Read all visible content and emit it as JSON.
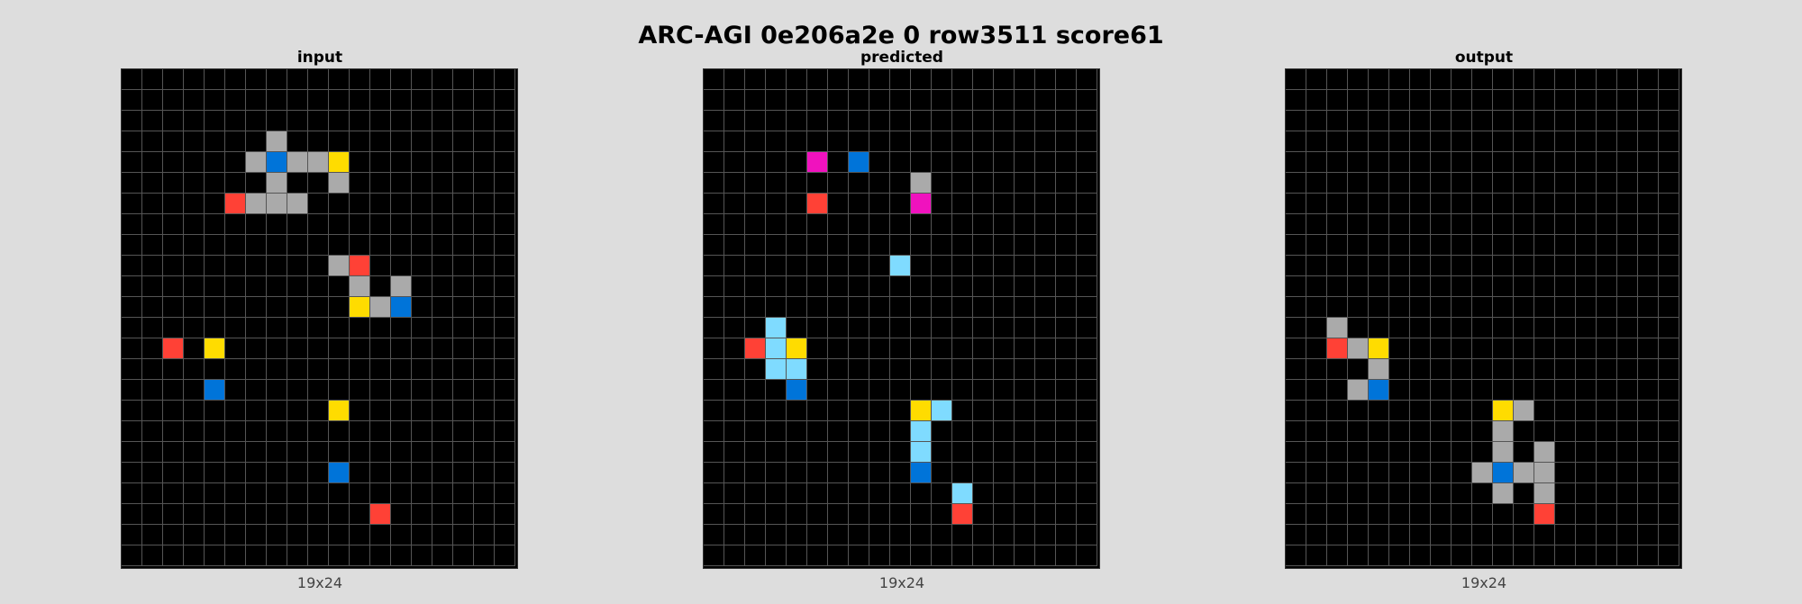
{
  "title": "ARC-AGI 0e206a2e 0 row3511 score61",
  "palette": {
    "0": "#000000",
    "1": "#0074d9",
    "2": "#ff4136",
    "3": "#2ecc40",
    "4": "#ffdc00",
    "5": "#aaaaaa",
    "6": "#f012be",
    "7": "#ff851b",
    "8": "#7fdbff",
    "9": "#870c25"
  },
  "panels": [
    {
      "label": "input",
      "dims": "19x24",
      "grid": [
        [
          0,
          0,
          0,
          0,
          0,
          0,
          0,
          0,
          0,
          0,
          0,
          0,
          0,
          0,
          0,
          0,
          0,
          0,
          0
        ],
        [
          0,
          0,
          0,
          0,
          0,
          0,
          0,
          0,
          0,
          0,
          0,
          0,
          0,
          0,
          0,
          0,
          0,
          0,
          0
        ],
        [
          0,
          0,
          0,
          0,
          0,
          0,
          0,
          0,
          0,
          0,
          0,
          0,
          0,
          0,
          0,
          0,
          0,
          0,
          0
        ],
        [
          0,
          0,
          0,
          0,
          0,
          0,
          0,
          5,
          0,
          0,
          0,
          0,
          0,
          0,
          0,
          0,
          0,
          0,
          0
        ],
        [
          0,
          0,
          0,
          0,
          0,
          0,
          5,
          1,
          5,
          5,
          4,
          0,
          0,
          0,
          0,
          0,
          0,
          0,
          0
        ],
        [
          0,
          0,
          0,
          0,
          0,
          0,
          0,
          5,
          0,
          0,
          5,
          0,
          0,
          0,
          0,
          0,
          0,
          0,
          0
        ],
        [
          0,
          0,
          0,
          0,
          0,
          2,
          5,
          5,
          5,
          0,
          0,
          0,
          0,
          0,
          0,
          0,
          0,
          0,
          0
        ],
        [
          0,
          0,
          0,
          0,
          0,
          0,
          0,
          0,
          0,
          0,
          0,
          0,
          0,
          0,
          0,
          0,
          0,
          0,
          0
        ],
        [
          0,
          0,
          0,
          0,
          0,
          0,
          0,
          0,
          0,
          0,
          0,
          0,
          0,
          0,
          0,
          0,
          0,
          0,
          0
        ],
        [
          0,
          0,
          0,
          0,
          0,
          0,
          0,
          0,
          0,
          0,
          5,
          2,
          0,
          0,
          0,
          0,
          0,
          0,
          0
        ],
        [
          0,
          0,
          0,
          0,
          0,
          0,
          0,
          0,
          0,
          0,
          0,
          5,
          0,
          5,
          0,
          0,
          0,
          0,
          0
        ],
        [
          0,
          0,
          0,
          0,
          0,
          0,
          0,
          0,
          0,
          0,
          0,
          4,
          5,
          1,
          0,
          0,
          0,
          0,
          0
        ],
        [
          0,
          0,
          0,
          0,
          0,
          0,
          0,
          0,
          0,
          0,
          0,
          0,
          0,
          0,
          0,
          0,
          0,
          0,
          0
        ],
        [
          0,
          0,
          2,
          0,
          4,
          0,
          0,
          0,
          0,
          0,
          0,
          0,
          0,
          0,
          0,
          0,
          0,
          0,
          0
        ],
        [
          0,
          0,
          0,
          0,
          0,
          0,
          0,
          0,
          0,
          0,
          0,
          0,
          0,
          0,
          0,
          0,
          0,
          0,
          0
        ],
        [
          0,
          0,
          0,
          0,
          1,
          0,
          0,
          0,
          0,
          0,
          0,
          0,
          0,
          0,
          0,
          0,
          0,
          0,
          0
        ],
        [
          0,
          0,
          0,
          0,
          0,
          0,
          0,
          0,
          0,
          0,
          4,
          0,
          0,
          0,
          0,
          0,
          0,
          0,
          0
        ],
        [
          0,
          0,
          0,
          0,
          0,
          0,
          0,
          0,
          0,
          0,
          0,
          0,
          0,
          0,
          0,
          0,
          0,
          0,
          0
        ],
        [
          0,
          0,
          0,
          0,
          0,
          0,
          0,
          0,
          0,
          0,
          0,
          0,
          0,
          0,
          0,
          0,
          0,
          0,
          0
        ],
        [
          0,
          0,
          0,
          0,
          0,
          0,
          0,
          0,
          0,
          0,
          1,
          0,
          0,
          0,
          0,
          0,
          0,
          0,
          0
        ],
        [
          0,
          0,
          0,
          0,
          0,
          0,
          0,
          0,
          0,
          0,
          0,
          0,
          0,
          0,
          0,
          0,
          0,
          0,
          0
        ],
        [
          0,
          0,
          0,
          0,
          0,
          0,
          0,
          0,
          0,
          0,
          0,
          0,
          2,
          0,
          0,
          0,
          0,
          0,
          0
        ],
        [
          0,
          0,
          0,
          0,
          0,
          0,
          0,
          0,
          0,
          0,
          0,
          0,
          0,
          0,
          0,
          0,
          0,
          0,
          0
        ],
        [
          0,
          0,
          0,
          0,
          0,
          0,
          0,
          0,
          0,
          0,
          0,
          0,
          0,
          0,
          0,
          0,
          0,
          0,
          0
        ]
      ]
    },
    {
      "label": "predicted",
      "dims": "19x24",
      "grid": [
        [
          0,
          0,
          0,
          0,
          0,
          0,
          0,
          0,
          0,
          0,
          0,
          0,
          0,
          0,
          0,
          0,
          0,
          0,
          0
        ],
        [
          0,
          0,
          0,
          0,
          0,
          0,
          0,
          0,
          0,
          0,
          0,
          0,
          0,
          0,
          0,
          0,
          0,
          0,
          0
        ],
        [
          0,
          0,
          0,
          0,
          0,
          0,
          0,
          0,
          0,
          0,
          0,
          0,
          0,
          0,
          0,
          0,
          0,
          0,
          0
        ],
        [
          0,
          0,
          0,
          0,
          0,
          0,
          0,
          0,
          0,
          0,
          0,
          0,
          0,
          0,
          0,
          0,
          0,
          0,
          0
        ],
        [
          0,
          0,
          0,
          0,
          0,
          6,
          0,
          1,
          0,
          0,
          0,
          0,
          0,
          0,
          0,
          0,
          0,
          0,
          0
        ],
        [
          0,
          0,
          0,
          0,
          0,
          0,
          0,
          0,
          0,
          0,
          5,
          0,
          0,
          0,
          0,
          0,
          0,
          0,
          0
        ],
        [
          0,
          0,
          0,
          0,
          0,
          2,
          0,
          0,
          0,
          0,
          6,
          0,
          0,
          0,
          0,
          0,
          0,
          0,
          0
        ],
        [
          0,
          0,
          0,
          0,
          0,
          0,
          0,
          0,
          0,
          0,
          0,
          0,
          0,
          0,
          0,
          0,
          0,
          0,
          0
        ],
        [
          0,
          0,
          0,
          0,
          0,
          0,
          0,
          0,
          0,
          0,
          0,
          0,
          0,
          0,
          0,
          0,
          0,
          0,
          0
        ],
        [
          0,
          0,
          0,
          0,
          0,
          0,
          0,
          0,
          0,
          8,
          0,
          0,
          0,
          0,
          0,
          0,
          0,
          0,
          0
        ],
        [
          0,
          0,
          0,
          0,
          0,
          0,
          0,
          0,
          0,
          0,
          0,
          0,
          0,
          0,
          0,
          0,
          0,
          0,
          0
        ],
        [
          0,
          0,
          0,
          0,
          0,
          0,
          0,
          0,
          0,
          0,
          0,
          0,
          0,
          0,
          0,
          0,
          0,
          0,
          0
        ],
        [
          0,
          0,
          0,
          8,
          0,
          0,
          0,
          0,
          0,
          0,
          0,
          0,
          0,
          0,
          0,
          0,
          0,
          0,
          0
        ],
        [
          0,
          0,
          2,
          8,
          4,
          0,
          0,
          0,
          0,
          0,
          0,
          0,
          0,
          0,
          0,
          0,
          0,
          0,
          0
        ],
        [
          0,
          0,
          0,
          8,
          8,
          0,
          0,
          0,
          0,
          0,
          0,
          0,
          0,
          0,
          0,
          0,
          0,
          0,
          0
        ],
        [
          0,
          0,
          0,
          0,
          1,
          0,
          0,
          0,
          0,
          0,
          0,
          0,
          0,
          0,
          0,
          0,
          0,
          0,
          0
        ],
        [
          0,
          0,
          0,
          0,
          0,
          0,
          0,
          0,
          0,
          0,
          4,
          8,
          0,
          0,
          0,
          0,
          0,
          0,
          0
        ],
        [
          0,
          0,
          0,
          0,
          0,
          0,
          0,
          0,
          0,
          0,
          8,
          0,
          0,
          0,
          0,
          0,
          0,
          0,
          0
        ],
        [
          0,
          0,
          0,
          0,
          0,
          0,
          0,
          0,
          0,
          0,
          8,
          0,
          0,
          0,
          0,
          0,
          0,
          0,
          0
        ],
        [
          0,
          0,
          0,
          0,
          0,
          0,
          0,
          0,
          0,
          0,
          1,
          0,
          0,
          0,
          0,
          0,
          0,
          0,
          0
        ],
        [
          0,
          0,
          0,
          0,
          0,
          0,
          0,
          0,
          0,
          0,
          0,
          0,
          8,
          0,
          0,
          0,
          0,
          0,
          0
        ],
        [
          0,
          0,
          0,
          0,
          0,
          0,
          0,
          0,
          0,
          0,
          0,
          0,
          2,
          0,
          0,
          0,
          0,
          0,
          0
        ],
        [
          0,
          0,
          0,
          0,
          0,
          0,
          0,
          0,
          0,
          0,
          0,
          0,
          0,
          0,
          0,
          0,
          0,
          0,
          0
        ],
        [
          0,
          0,
          0,
          0,
          0,
          0,
          0,
          0,
          0,
          0,
          0,
          0,
          0,
          0,
          0,
          0,
          0,
          0,
          0
        ]
      ]
    },
    {
      "label": "output",
      "dims": "19x24",
      "grid": [
        [
          0,
          0,
          0,
          0,
          0,
          0,
          0,
          0,
          0,
          0,
          0,
          0,
          0,
          0,
          0,
          0,
          0,
          0,
          0
        ],
        [
          0,
          0,
          0,
          0,
          0,
          0,
          0,
          0,
          0,
          0,
          0,
          0,
          0,
          0,
          0,
          0,
          0,
          0,
          0
        ],
        [
          0,
          0,
          0,
          0,
          0,
          0,
          0,
          0,
          0,
          0,
          0,
          0,
          0,
          0,
          0,
          0,
          0,
          0,
          0
        ],
        [
          0,
          0,
          0,
          0,
          0,
          0,
          0,
          0,
          0,
          0,
          0,
          0,
          0,
          0,
          0,
          0,
          0,
          0,
          0
        ],
        [
          0,
          0,
          0,
          0,
          0,
          0,
          0,
          0,
          0,
          0,
          0,
          0,
          0,
          0,
          0,
          0,
          0,
          0,
          0
        ],
        [
          0,
          0,
          0,
          0,
          0,
          0,
          0,
          0,
          0,
          0,
          0,
          0,
          0,
          0,
          0,
          0,
          0,
          0,
          0
        ],
        [
          0,
          0,
          0,
          0,
          0,
          0,
          0,
          0,
          0,
          0,
          0,
          0,
          0,
          0,
          0,
          0,
          0,
          0,
          0
        ],
        [
          0,
          0,
          0,
          0,
          0,
          0,
          0,
          0,
          0,
          0,
          0,
          0,
          0,
          0,
          0,
          0,
          0,
          0,
          0
        ],
        [
          0,
          0,
          0,
          0,
          0,
          0,
          0,
          0,
          0,
          0,
          0,
          0,
          0,
          0,
          0,
          0,
          0,
          0,
          0
        ],
        [
          0,
          0,
          0,
          0,
          0,
          0,
          0,
          0,
          0,
          0,
          0,
          0,
          0,
          0,
          0,
          0,
          0,
          0,
          0
        ],
        [
          0,
          0,
          0,
          0,
          0,
          0,
          0,
          0,
          0,
          0,
          0,
          0,
          0,
          0,
          0,
          0,
          0,
          0,
          0
        ],
        [
          0,
          0,
          0,
          0,
          0,
          0,
          0,
          0,
          0,
          0,
          0,
          0,
          0,
          0,
          0,
          0,
          0,
          0,
          0
        ],
        [
          0,
          0,
          5,
          0,
          0,
          0,
          0,
          0,
          0,
          0,
          0,
          0,
          0,
          0,
          0,
          0,
          0,
          0,
          0
        ],
        [
          0,
          0,
          2,
          5,
          4,
          0,
          0,
          0,
          0,
          0,
          0,
          0,
          0,
          0,
          0,
          0,
          0,
          0,
          0
        ],
        [
          0,
          0,
          0,
          0,
          5,
          0,
          0,
          0,
          0,
          0,
          0,
          0,
          0,
          0,
          0,
          0,
          0,
          0,
          0
        ],
        [
          0,
          0,
          0,
          5,
          1,
          0,
          0,
          0,
          0,
          0,
          0,
          0,
          0,
          0,
          0,
          0,
          0,
          0,
          0
        ],
        [
          0,
          0,
          0,
          0,
          0,
          0,
          0,
          0,
          0,
          0,
          4,
          5,
          0,
          0,
          0,
          0,
          0,
          0,
          0
        ],
        [
          0,
          0,
          0,
          0,
          0,
          0,
          0,
          0,
          0,
          0,
          5,
          0,
          0,
          0,
          0,
          0,
          0,
          0,
          0
        ],
        [
          0,
          0,
          0,
          0,
          0,
          0,
          0,
          0,
          0,
          0,
          5,
          0,
          5,
          0,
          0,
          0,
          0,
          0,
          0
        ],
        [
          0,
          0,
          0,
          0,
          0,
          0,
          0,
          0,
          0,
          5,
          1,
          5,
          5,
          0,
          0,
          0,
          0,
          0,
          0
        ],
        [
          0,
          0,
          0,
          0,
          0,
          0,
          0,
          0,
          0,
          0,
          5,
          0,
          5,
          0,
          0,
          0,
          0,
          0,
          0
        ],
        [
          0,
          0,
          0,
          0,
          0,
          0,
          0,
          0,
          0,
          0,
          0,
          0,
          2,
          0,
          0,
          0,
          0,
          0,
          0
        ],
        [
          0,
          0,
          0,
          0,
          0,
          0,
          0,
          0,
          0,
          0,
          0,
          0,
          0,
          0,
          0,
          0,
          0,
          0,
          0
        ],
        [
          0,
          0,
          0,
          0,
          0,
          0,
          0,
          0,
          0,
          0,
          0,
          0,
          0,
          0,
          0,
          0,
          0,
          0,
          0
        ]
      ]
    }
  ]
}
